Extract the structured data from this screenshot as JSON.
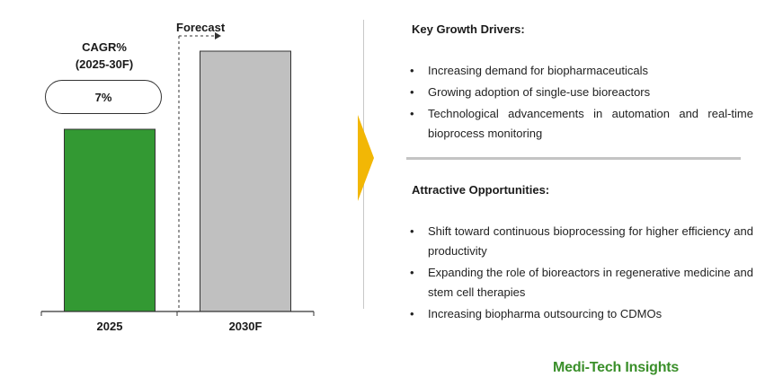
{
  "cagr": {
    "label_line1": "CAGR%",
    "label_line2": "(2025-30F)",
    "value": "7%"
  },
  "forecast_label": "Forecast",
  "chart_data": {
    "type": "bar",
    "categories": [
      "2025",
      "2030F"
    ],
    "values": [
      0.7,
      1.0
    ],
    "value_scale": "relative height; no y-axis or values printed",
    "bar_colors": [
      "#339933",
      "#c0c0c0"
    ],
    "forecast_start_category": "2030F",
    "ylim": [
      0,
      1.0
    ],
    "grid": false,
    "title": "",
    "xlabel": "",
    "ylabel": ""
  },
  "drivers": {
    "title": "Key Growth Drivers:",
    "items": [
      "Increasing demand for biopharmaceuticals",
      "Growing adoption of single-use bioreactors",
      "Technological advancements in automation and real-time bioprocess monitoring"
    ]
  },
  "opportunities": {
    "title": "Attractive Opportunities:",
    "items": [
      "Shift toward continuous bioprocessing for higher efficiency and productivity",
      "Expanding the role of bioreactors in regenerative medicine and stem cell therapies",
      "Increasing biopharma outsourcing to CDMOs"
    ]
  },
  "bullet_glyph": "•",
  "logo_text": "Medi-Tech Insights",
  "colors": {
    "accent_green": "#339933",
    "forecast_gray": "#c0c0c0",
    "arrow_yellow": "#f2b705",
    "logo_green": "#3a8f2a"
  }
}
